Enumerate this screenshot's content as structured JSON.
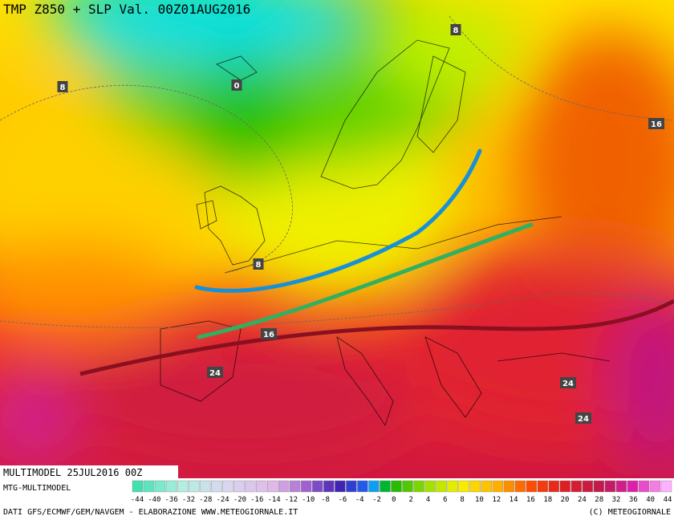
{
  "header": {
    "title": "TMP Z850 + SLP Val. 00Z01AUG2016"
  },
  "map": {
    "contour_labels": [
      "8",
      "0",
      "8",
      "16",
      "8",
      "16",
      "24",
      "24",
      "24"
    ]
  },
  "footer": {
    "run": "MULTIMODEL 25JUL2016 00Z",
    "source": "MTG-MULTIMODEL",
    "colorbar": {
      "labels": [
        -44,
        -40,
        -36,
        -32,
        -28,
        -24,
        -20,
        -16,
        -14,
        -12,
        -10,
        -8,
        -6,
        -4,
        -2,
        0,
        2,
        4,
        6,
        8,
        10,
        12,
        14,
        16,
        18,
        20,
        24,
        28,
        32,
        36,
        40,
        44
      ]
    },
    "credits": "DATI GFS/ECMWF/GEM/NAVGEM - ELABORAZIONE WWW.METEOGIORNALE.IT",
    "copyright": "(C) METEOGIORNALE"
  }
}
